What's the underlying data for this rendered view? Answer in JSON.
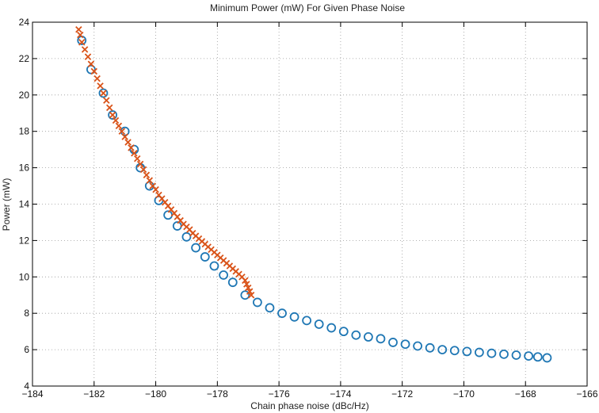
{
  "chart_data": {
    "type": "scatter",
    "title": "Minimum Power (mW) For Given Phase Noise",
    "xlabel": "Chain phase noise (dBc/Hz)",
    "ylabel": "Power (mW)",
    "xlim": [
      -184,
      -166
    ],
    "ylim": [
      4,
      24
    ],
    "x_ticks": [
      -184,
      -182,
      -180,
      -178,
      -176,
      -174,
      -172,
      -170,
      -168,
      -166
    ],
    "x_tick_labels": [
      "−184",
      "−182",
      "−180",
      "−178",
      "−176",
      "−174",
      "−172",
      "−170",
      "−168",
      "−166"
    ],
    "y_ticks": [
      4,
      6,
      8,
      10,
      12,
      14,
      16,
      18,
      20,
      22,
      24
    ],
    "y_tick_labels": [
      "4",
      "6",
      "8",
      "10",
      "12",
      "14",
      "16",
      "18",
      "20",
      "22",
      "24"
    ],
    "grid": true,
    "series": [
      {
        "marker": "circle",
        "color": "#1f77b4",
        "points": [
          [
            -182.4,
            23.0
          ],
          [
            -182.1,
            21.4
          ],
          [
            -181.7,
            20.1
          ],
          [
            -181.4,
            18.9
          ],
          [
            -181.0,
            18.0
          ],
          [
            -180.7,
            17.0
          ],
          [
            -180.5,
            16.0
          ],
          [
            -180.2,
            15.0
          ],
          [
            -179.9,
            14.2
          ],
          [
            -179.6,
            13.4
          ],
          [
            -179.3,
            12.8
          ],
          [
            -179.0,
            12.2
          ],
          [
            -178.7,
            11.6
          ],
          [
            -178.4,
            11.1
          ],
          [
            -178.1,
            10.6
          ],
          [
            -177.8,
            10.1
          ],
          [
            -177.5,
            9.7
          ],
          [
            -177.1,
            9.0
          ],
          [
            -176.7,
            8.6
          ],
          [
            -176.3,
            8.3
          ],
          [
            -175.9,
            8.0
          ],
          [
            -175.5,
            7.8
          ],
          [
            -175.1,
            7.6
          ],
          [
            -174.7,
            7.4
          ],
          [
            -174.3,
            7.2
          ],
          [
            -173.9,
            7.0
          ],
          [
            -173.5,
            6.8
          ],
          [
            -173.1,
            6.7
          ],
          [
            -172.7,
            6.6
          ],
          [
            -172.3,
            6.4
          ],
          [
            -171.9,
            6.3
          ],
          [
            -171.5,
            6.2
          ],
          [
            -171.1,
            6.1
          ],
          [
            -170.7,
            6.0
          ],
          [
            -170.3,
            5.95
          ],
          [
            -169.9,
            5.9
          ],
          [
            -169.5,
            5.85
          ],
          [
            -169.1,
            5.8
          ],
          [
            -168.7,
            5.75
          ],
          [
            -168.3,
            5.7
          ],
          [
            -167.9,
            5.65
          ],
          [
            -167.6,
            5.6
          ],
          [
            -167.3,
            5.55
          ]
        ]
      },
      {
        "marker": "x",
        "color": "#d95319",
        "points": [
          [
            -182.5,
            23.6
          ],
          [
            -182.45,
            23.3
          ],
          [
            -182.4,
            22.9
          ],
          [
            -182.3,
            22.5
          ],
          [
            -182.2,
            22.1
          ],
          [
            -182.1,
            21.7
          ],
          [
            -182.0,
            21.3
          ],
          [
            -181.9,
            20.9
          ],
          [
            -181.8,
            20.5
          ],
          [
            -181.7,
            20.1
          ],
          [
            -181.6,
            19.7
          ],
          [
            -181.5,
            19.3
          ],
          [
            -181.4,
            18.9
          ],
          [
            -181.3,
            18.6
          ],
          [
            -181.2,
            18.3
          ],
          [
            -181.1,
            18.0
          ],
          [
            -181.0,
            17.7
          ],
          [
            -180.9,
            17.4
          ],
          [
            -180.8,
            17.1
          ],
          [
            -180.7,
            16.8
          ],
          [
            -180.6,
            16.5
          ],
          [
            -180.5,
            16.2
          ],
          [
            -180.4,
            15.9
          ],
          [
            -180.3,
            15.6
          ],
          [
            -180.2,
            15.3
          ],
          [
            -180.1,
            15.0
          ],
          [
            -180.0,
            14.8
          ],
          [
            -179.9,
            14.5
          ],
          [
            -179.8,
            14.3
          ],
          [
            -179.7,
            14.1
          ],
          [
            -179.6,
            13.9
          ],
          [
            -179.5,
            13.7
          ],
          [
            -179.4,
            13.5
          ],
          [
            -179.3,
            13.3
          ],
          [
            -179.2,
            13.1
          ],
          [
            -179.1,
            12.9
          ],
          [
            -179.0,
            12.75
          ],
          [
            -178.9,
            12.6
          ],
          [
            -178.8,
            12.4
          ],
          [
            -178.7,
            12.25
          ],
          [
            -178.6,
            12.1
          ],
          [
            -178.5,
            11.95
          ],
          [
            -178.4,
            11.8
          ],
          [
            -178.3,
            11.65
          ],
          [
            -178.2,
            11.5
          ],
          [
            -178.1,
            11.35
          ],
          [
            -178.0,
            11.2
          ],
          [
            -177.9,
            11.05
          ],
          [
            -177.8,
            10.9
          ],
          [
            -177.7,
            10.75
          ],
          [
            -177.6,
            10.6
          ],
          [
            -177.5,
            10.45
          ],
          [
            -177.4,
            10.3
          ],
          [
            -177.3,
            10.15
          ],
          [
            -177.2,
            10.0
          ],
          [
            -177.1,
            9.8
          ],
          [
            -177.05,
            9.6
          ],
          [
            -177.0,
            9.4
          ],
          [
            -176.95,
            9.2
          ],
          [
            -176.9,
            9.0
          ]
        ]
      }
    ]
  }
}
